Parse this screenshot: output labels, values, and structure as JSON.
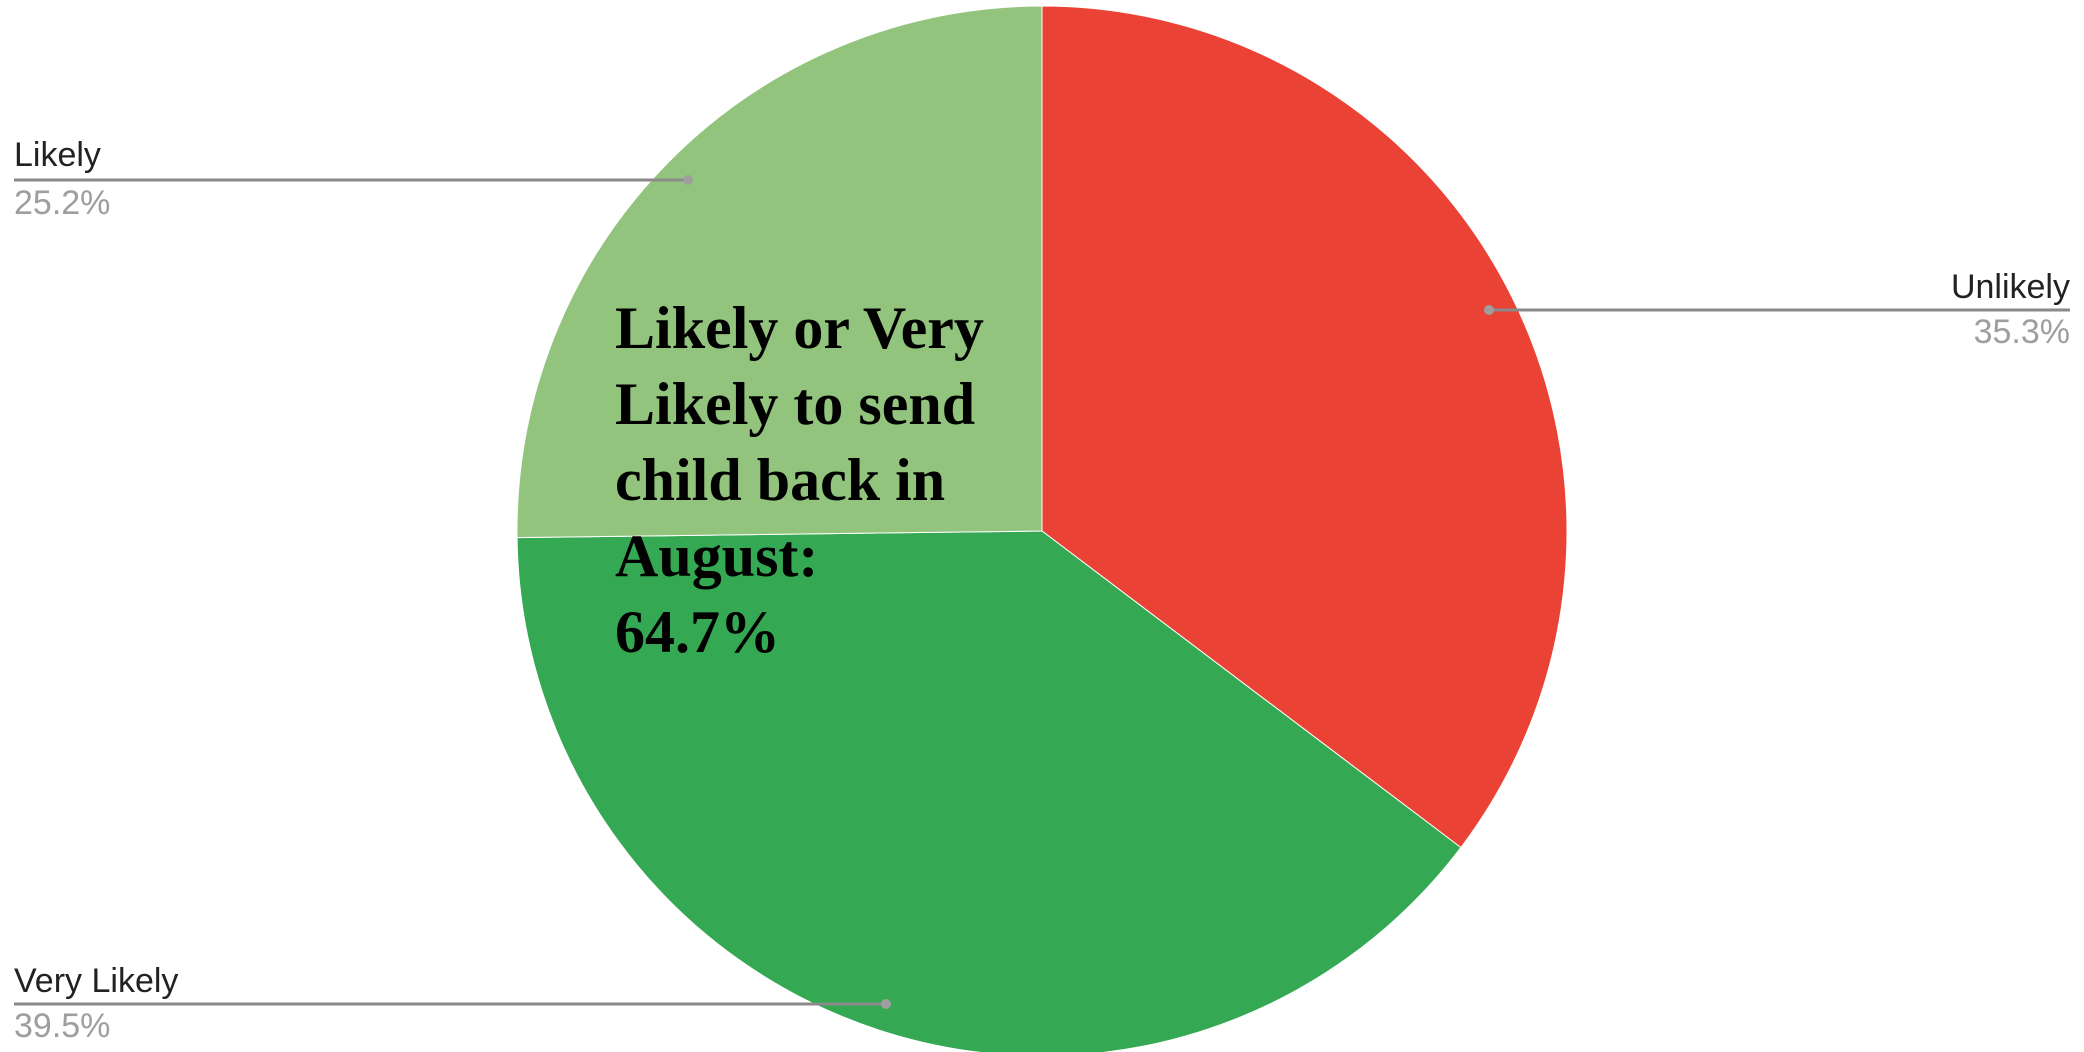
{
  "chart_data": {
    "type": "pie",
    "title": "",
    "slices": [
      {
        "label": "Unlikely",
        "value": 35.3,
        "value_label": "35.3%",
        "color": "#EA4335"
      },
      {
        "label": "Very Likely",
        "value": 39.5,
        "value_label": "39.5%",
        "color": "#34A853"
      },
      {
        "label": "Likely",
        "value": 25.2,
        "value_label": "25.2%",
        "color": "#93C47D"
      }
    ],
    "start_angle_deg": 0,
    "direction": "clockwise",
    "legend": "leader-line labels outside pie",
    "annotation": "Likely or Very\nLikely to send\nchild back in\nAugust:\n64.7%"
  }
}
